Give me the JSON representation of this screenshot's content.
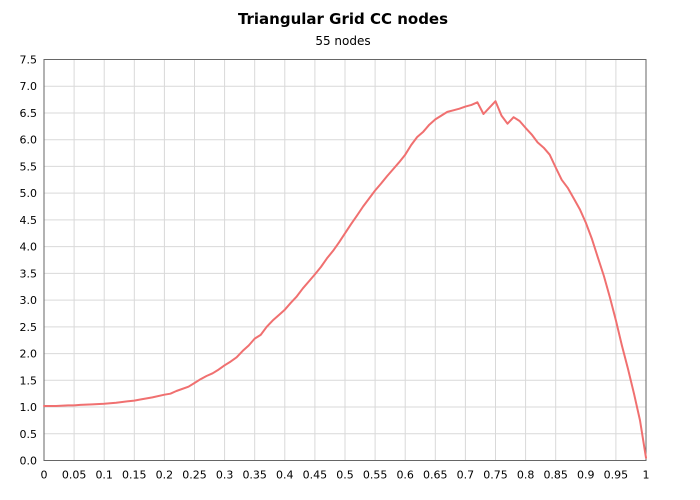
{
  "chart_data": {
    "type": "line",
    "title": "Triangular Grid CC nodes",
    "subtitle": "55 nodes",
    "xlabel": "",
    "ylabel": "",
    "xlim": [
      0,
      1
    ],
    "ylim": [
      0,
      7.5
    ],
    "grid": true,
    "x_ticks": [
      "0",
      "0.05",
      "0.1",
      "0.15",
      "0.2",
      "0.25",
      "0.3",
      "0.35",
      "0.4",
      "0.45",
      "0.5",
      "0.55",
      "0.6",
      "0.65",
      "0.7",
      "0.75",
      "0.8",
      "0.85",
      "0.9",
      "0.95",
      "1"
    ],
    "y_ticks": [
      "0.0",
      "0.5",
      "1.0",
      "1.5",
      "2.0",
      "2.5",
      "3.0",
      "3.5",
      "4.0",
      "4.5",
      "5.0",
      "5.5",
      "6.0",
      "6.5",
      "7.0",
      "7.5"
    ],
    "series": [
      {
        "color": "#f07070",
        "x": [
          0,
          0.02,
          0.04,
          0.05,
          0.06,
          0.08,
          0.1,
          0.12,
          0.14,
          0.15,
          0.16,
          0.18,
          0.2,
          0.21,
          0.22,
          0.24,
          0.25,
          0.26,
          0.27,
          0.28,
          0.29,
          0.3,
          0.31,
          0.32,
          0.33,
          0.34,
          0.35,
          0.36,
          0.37,
          0.38,
          0.39,
          0.4,
          0.41,
          0.42,
          0.43,
          0.44,
          0.45,
          0.46,
          0.47,
          0.48,
          0.49,
          0.5,
          0.51,
          0.52,
          0.53,
          0.54,
          0.55,
          0.56,
          0.57,
          0.58,
          0.59,
          0.6,
          0.61,
          0.62,
          0.63,
          0.64,
          0.65,
          0.66,
          0.67,
          0.68,
          0.69,
          0.7,
          0.71,
          0.72,
          0.73,
          0.74,
          0.75,
          0.76,
          0.77,
          0.78,
          0.79,
          0.8,
          0.81,
          0.82,
          0.83,
          0.84,
          0.85,
          0.86,
          0.87,
          0.88,
          0.89,
          0.9,
          0.91,
          0.92,
          0.93,
          0.94,
          0.95,
          0.96,
          0.97,
          0.98,
          0.99,
          1.0
        ],
        "y": [
          1.02,
          1.02,
          1.03,
          1.03,
          1.04,
          1.05,
          1.06,
          1.08,
          1.11,
          1.12,
          1.14,
          1.18,
          1.23,
          1.25,
          1.3,
          1.38,
          1.45,
          1.52,
          1.58,
          1.63,
          1.7,
          1.78,
          1.85,
          1.93,
          2.05,
          2.15,
          2.28,
          2.35,
          2.5,
          2.62,
          2.72,
          2.82,
          2.95,
          3.07,
          3.22,
          3.35,
          3.48,
          3.62,
          3.78,
          3.92,
          4.08,
          4.25,
          4.42,
          4.58,
          4.75,
          4.9,
          5.05,
          5.18,
          5.32,
          5.45,
          5.58,
          5.72,
          5.9,
          6.05,
          6.15,
          6.28,
          6.38,
          6.45,
          6.52,
          6.55,
          6.58,
          6.62,
          6.65,
          6.7,
          6.48,
          6.6,
          6.72,
          6.45,
          6.3,
          6.42,
          6.35,
          6.22,
          6.1,
          5.95,
          5.85,
          5.72,
          5.48,
          5.25,
          5.1,
          4.9,
          4.7,
          4.45,
          4.15,
          3.8,
          3.45,
          3.05,
          2.62,
          2.15,
          1.72,
          1.25,
          0.75,
          0.05
        ]
      }
    ]
  }
}
